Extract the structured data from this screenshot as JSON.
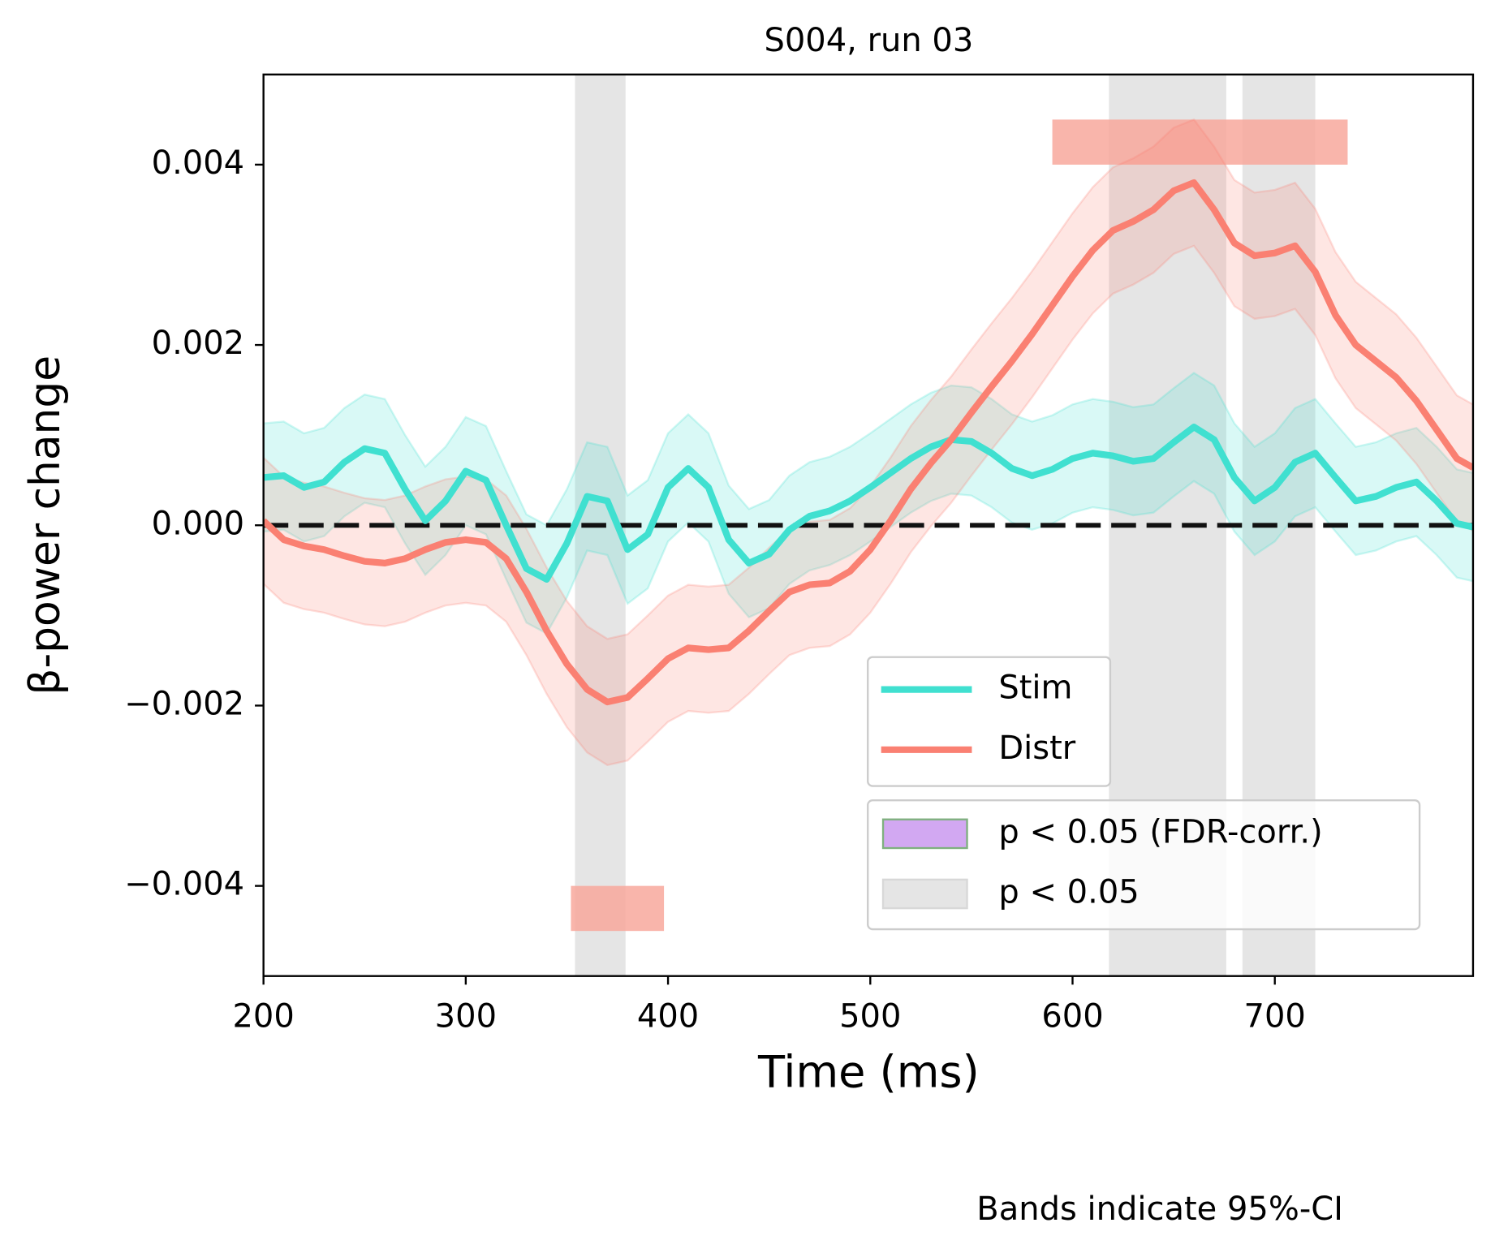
{
  "chart_data": {
    "type": "line",
    "title": "S004, run 03",
    "xlabel": "Time (ms)",
    "ylabel": "β-power change",
    "footnote": "Bands indicate 95%-CI",
    "xlim": [
      200,
      798
    ],
    "ylim": [
      -0.005,
      0.005
    ],
    "xticks": [
      200,
      300,
      400,
      500,
      600,
      700
    ],
    "yticks": [
      {
        "value": -0.004,
        "label": "−0.004"
      },
      {
        "value": -0.002,
        "label": "−0.002"
      },
      {
        "value": 0,
        "label": "0.000"
      },
      {
        "value": 0.002,
        "label": "0.002"
      },
      {
        "value": 0.004,
        "label": "0.004"
      }
    ],
    "hline": 0,
    "x": [
      200,
      210,
      220,
      230,
      240,
      250,
      260,
      270,
      280,
      290,
      300,
      310,
      320,
      330,
      340,
      350,
      360,
      370,
      380,
      390,
      400,
      410,
      420,
      430,
      440,
      450,
      460,
      470,
      480,
      490,
      500,
      510,
      520,
      530,
      540,
      550,
      560,
      570,
      580,
      590,
      600,
      610,
      620,
      630,
      640,
      650,
      660,
      670,
      680,
      690,
      700,
      710,
      720,
      730,
      740,
      750,
      760,
      770,
      780,
      790,
      798
    ],
    "series": [
      {
        "name": "Stim",
        "color": "#40e0d0",
        "ci_halfwidth": 0.0006,
        "values": [
          0.00053,
          0.00055,
          0.00042,
          0.00048,
          0.0007,
          0.00085,
          0.0008,
          0.0004,
          5e-05,
          0.00027,
          0.0006,
          0.0005,
          0,
          -0.00048,
          -0.0006,
          -0.0002,
          0.00032,
          0.00027,
          -0.00027,
          -0.0001,
          0.00042,
          0.00063,
          0.00042,
          -0.00016,
          -0.00042,
          -0.00032,
          -5e-05,
          0.0001,
          0.00016,
          0.00027,
          0.00042,
          0.00058,
          0.00074,
          0.00087,
          0.00095,
          0.00093,
          0.0008,
          0.00063,
          0.00055,
          0.00062,
          0.00074,
          0.0008,
          0.00077,
          0.00071,
          0.00074,
          0.00092,
          0.00109,
          0.00095,
          0.00053,
          0.00027,
          0.00042,
          0.0007,
          0.0008,
          0.00053,
          0.00027,
          0.00032,
          0.00042,
          0.00048,
          0.00027,
          2e-05,
          -2e-05
        ]
      },
      {
        "name": "Distr",
        "color": "#fa8072",
        "ci_halfwidth": 0.0007,
        "values": [
          5e-05,
          -0.00016,
          -0.00023,
          -0.00027,
          -0.00034,
          -0.0004,
          -0.00042,
          -0.00037,
          -0.00027,
          -0.00019,
          -0.00016,
          -0.00019,
          -0.00037,
          -0.00074,
          -0.00117,
          -0.00154,
          -0.00182,
          -0.00196,
          -0.00191,
          -0.0017,
          -0.00148,
          -0.00136,
          -0.00138,
          -0.00136,
          -0.00117,
          -0.00095,
          -0.00074,
          -0.00066,
          -0.00064,
          -0.00051,
          -0.00027,
          5e-05,
          0.0004,
          0.00069,
          0.00095,
          0.00125,
          0.00154,
          0.00182,
          0.00212,
          0.00244,
          0.00276,
          0.00305,
          0.00327,
          0.00337,
          0.0035,
          0.00371,
          0.0038,
          0.0035,
          0.00313,
          0.00299,
          0.00302,
          0.0031,
          0.00281,
          0.00233,
          0.002,
          0.00182,
          0.00164,
          0.00138,
          0.00106,
          0.00074,
          0.00064
        ]
      }
    ],
    "spans": [
      [
        354,
        379
      ],
      [
        618,
        676
      ],
      [
        684,
        720
      ]
    ],
    "span_color": "#e5e5e5",
    "highlight_bars": [
      {
        "x": [
          590,
          736
        ],
        "y": [
          0.004,
          0.0045
        ]
      },
      {
        "x": [
          352,
          398
        ],
        "y": [
          -0.0045,
          -0.004
        ]
      }
    ],
    "highlight_color": "#f8a89c",
    "patch_legend": [
      {
        "name": "p < 0.05 (FDR-corr.)",
        "color": "#d2a8f2",
        "edge": "#7fb07f"
      },
      {
        "name": "p < 0.05",
        "color": "#e5e5e5",
        "edge": "#d8d8d8"
      }
    ]
  }
}
